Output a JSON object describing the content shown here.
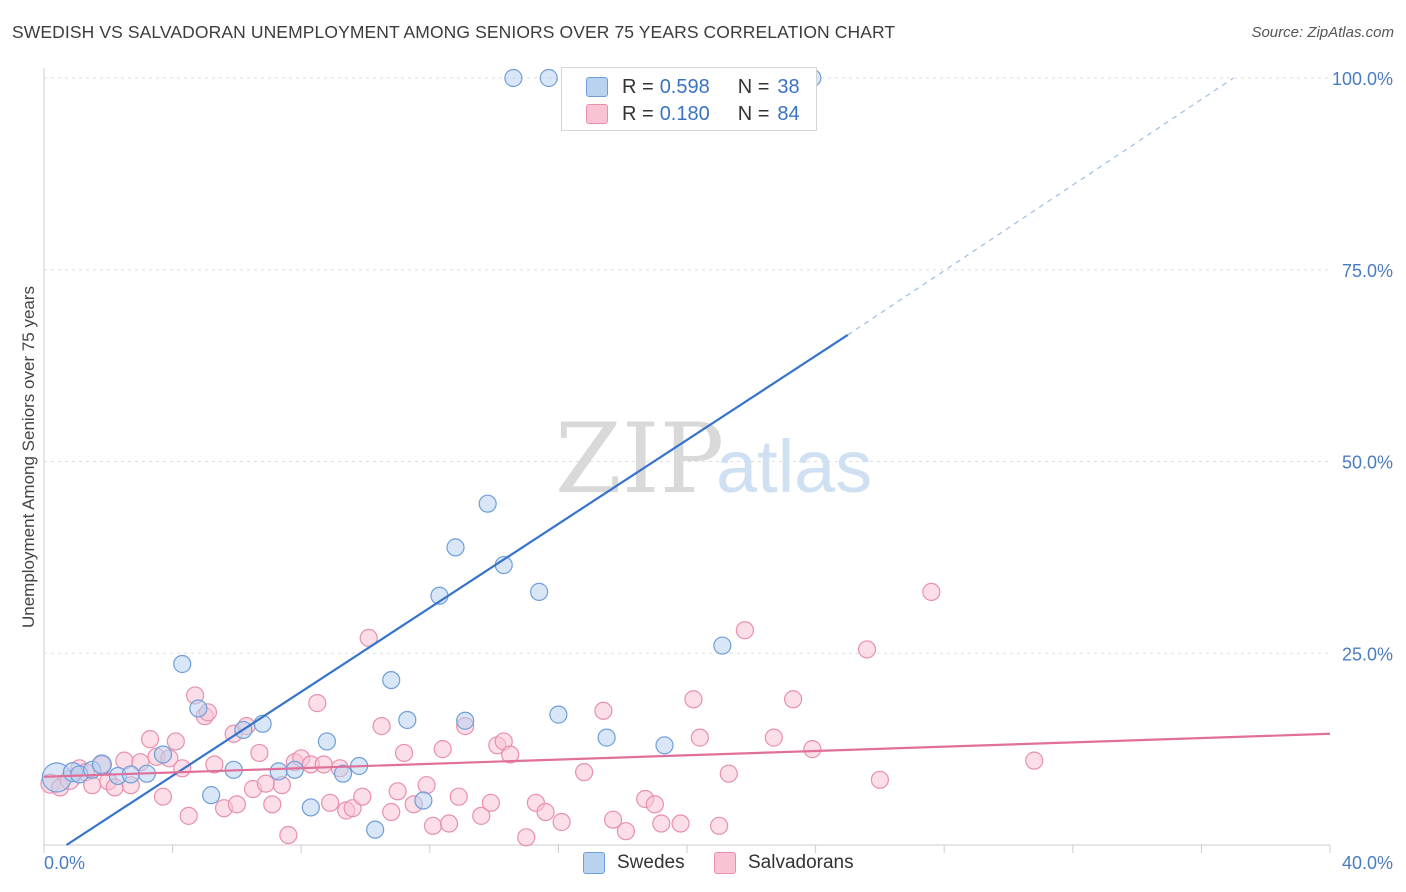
{
  "title": "SWEDISH VS SALVADORAN UNEMPLOYMENT AMONG SENIORS OVER 75 YEARS CORRELATION CHART",
  "source": "Source: ZipAtlas.com",
  "watermark": {
    "zip": "ZIP",
    "atlas": "atlas"
  },
  "colors": {
    "blue_fill": "#b9d2f0",
    "blue_stroke": "#6f9fd8",
    "blue_line": "#3673cc",
    "pink_fill": "#f8c3d3",
    "pink_stroke": "#e890ad",
    "pink_line": "#e0709a",
    "grid": "#dddddd",
    "tick_text": "#4a7cc0"
  },
  "legend": {
    "rows": [
      {
        "r_label": "R =",
        "r_value": "0.598",
        "n_label": "N =",
        "n_value": "38"
      },
      {
        "r_label": "R =",
        "r_value": "0.180",
        "n_label": "N =",
        "n_value": "84"
      }
    ]
  },
  "bottom_legend": [
    "Swedes",
    "Salvadorans"
  ],
  "chart_data": {
    "type": "scatter",
    "title": "SWEDISH VS SALVADORAN UNEMPLOYMENT AMONG SENIORS OVER 75 YEARS CORRELATION CHART",
    "xlabel": "",
    "ylabel": "Unemployment Among Seniors over 75 years",
    "xlim": [
      0,
      40
    ],
    "ylim": [
      0,
      103
    ],
    "x_tick_labels": [
      "0.0%",
      "40.0%"
    ],
    "y_ticks": [
      25,
      50,
      75,
      100
    ],
    "y_tick_labels": [
      "25.0%",
      "50.0%",
      "75.0%",
      "100.0%"
    ],
    "grid": true,
    "series": [
      {
        "name": "Swedes",
        "R": 0.598,
        "N": 38,
        "trend": {
          "x0": 0.7,
          "y0": 0,
          "x1": 25,
          "y1": 66.5,
          "dash_x1": 37,
          "dash_y1": 100
        },
        "points": [
          [
            0.4,
            8.8,
            26
          ],
          [
            0.9,
            9.5,
            16
          ],
          [
            1.1,
            9.2,
            14
          ],
          [
            1.5,
            9.8,
            14
          ],
          [
            1.8,
            10.5,
            16
          ],
          [
            2.3,
            9.0,
            14
          ],
          [
            2.7,
            9.2,
            14
          ],
          [
            3.2,
            9.3,
            14
          ],
          [
            3.7,
            11.8,
            14
          ],
          [
            4.3,
            23.6,
            14
          ],
          [
            4.8,
            17.8,
            14
          ],
          [
            5.2,
            6.5,
            14
          ],
          [
            5.9,
            9.8,
            14
          ],
          [
            6.2,
            15.0,
            14
          ],
          [
            6.8,
            15.8,
            14
          ],
          [
            7.3,
            9.6,
            14
          ],
          [
            7.8,
            9.8,
            14
          ],
          [
            8.3,
            4.9,
            14
          ],
          [
            8.8,
            13.5,
            14
          ],
          [
            9.3,
            9.3,
            14
          ],
          [
            9.8,
            10.3,
            14
          ],
          [
            10.3,
            2.0,
            14
          ],
          [
            10.8,
            21.5,
            14
          ],
          [
            11.3,
            16.3,
            14
          ],
          [
            11.8,
            5.8,
            14
          ],
          [
            12.3,
            32.5,
            14
          ],
          [
            12.8,
            38.8,
            14
          ],
          [
            13.1,
            16.2,
            14
          ],
          [
            13.8,
            44.5,
            14
          ],
          [
            14.3,
            36.5,
            14
          ],
          [
            14.6,
            100,
            14
          ],
          [
            15.4,
            33.0,
            14
          ],
          [
            15.7,
            100,
            14
          ],
          [
            16.0,
            17.0,
            14
          ],
          [
            17.5,
            14.0,
            14
          ],
          [
            19.3,
            13.0,
            14
          ],
          [
            21.1,
            26.0,
            14
          ],
          [
            23.9,
            100,
            14
          ]
        ]
      },
      {
        "name": "Salvadorans",
        "R": 0.18,
        "N": 84,
        "trend": {
          "x0": 0,
          "y0": 8.9,
          "x1": 40,
          "y1": 14.5
        },
        "points": [
          [
            0.2,
            8.0,
            16
          ],
          [
            0.5,
            7.5,
            14
          ],
          [
            0.8,
            8.5,
            16
          ],
          [
            1.1,
            10.0,
            14
          ],
          [
            1.3,
            9.5,
            14
          ],
          [
            1.5,
            7.8,
            14
          ],
          [
            1.8,
            10.5,
            14
          ],
          [
            2.0,
            8.3,
            14
          ],
          [
            2.2,
            7.5,
            14
          ],
          [
            2.5,
            11.0,
            14
          ],
          [
            2.7,
            7.8,
            14
          ],
          [
            3.0,
            10.8,
            14
          ],
          [
            3.3,
            13.8,
            14
          ],
          [
            3.5,
            11.5,
            14
          ],
          [
            3.7,
            6.3,
            14
          ],
          [
            3.9,
            11.3,
            14
          ],
          [
            4.1,
            13.5,
            14
          ],
          [
            4.3,
            10.0,
            14
          ],
          [
            4.5,
            3.8,
            14
          ],
          [
            4.7,
            19.5,
            14
          ],
          [
            5.0,
            16.8,
            14
          ],
          [
            5.1,
            17.3,
            14
          ],
          [
            5.3,
            10.5,
            14
          ],
          [
            5.6,
            4.8,
            14
          ],
          [
            5.9,
            14.5,
            14
          ],
          [
            6.0,
            5.3,
            14
          ],
          [
            6.3,
            15.5,
            14
          ],
          [
            6.5,
            7.3,
            14
          ],
          [
            6.7,
            12.0,
            14
          ],
          [
            6.9,
            8.0,
            14
          ],
          [
            7.1,
            5.3,
            14
          ],
          [
            7.4,
            7.8,
            14
          ],
          [
            7.6,
            1.3,
            14
          ],
          [
            7.8,
            10.8,
            14
          ],
          [
            8.0,
            11.3,
            14
          ],
          [
            8.3,
            10.5,
            14
          ],
          [
            8.5,
            18.5,
            14
          ],
          [
            8.7,
            10.5,
            14
          ],
          [
            8.9,
            5.5,
            14
          ],
          [
            9.2,
            10.0,
            14
          ],
          [
            9.4,
            4.5,
            14
          ],
          [
            9.6,
            4.8,
            14
          ],
          [
            9.9,
            6.3,
            14
          ],
          [
            10.1,
            27.0,
            14
          ],
          [
            10.5,
            15.5,
            14
          ],
          [
            10.8,
            4.3,
            14
          ],
          [
            11.0,
            7.0,
            14
          ],
          [
            11.2,
            12.0,
            14
          ],
          [
            11.5,
            5.3,
            14
          ],
          [
            11.9,
            7.8,
            14
          ],
          [
            12.1,
            2.5,
            14
          ],
          [
            12.4,
            12.5,
            14
          ],
          [
            12.6,
            2.8,
            14
          ],
          [
            12.9,
            6.3,
            14
          ],
          [
            13.1,
            15.5,
            14
          ],
          [
            13.6,
            3.8,
            14
          ],
          [
            13.9,
            5.5,
            14
          ],
          [
            14.1,
            13.0,
            14
          ],
          [
            14.3,
            13.5,
            14
          ],
          [
            14.5,
            11.8,
            14
          ],
          [
            15.0,
            1.0,
            14
          ],
          [
            15.3,
            5.5,
            14
          ],
          [
            15.6,
            4.3,
            14
          ],
          [
            16.1,
            3.0,
            14
          ],
          [
            16.8,
            9.5,
            14
          ],
          [
            17.4,
            17.5,
            14
          ],
          [
            18.1,
            1.8,
            14
          ],
          [
            18.7,
            6.0,
            14
          ],
          [
            19.0,
            5.3,
            14
          ],
          [
            19.2,
            2.8,
            14
          ],
          [
            20.2,
            19.0,
            14
          ],
          [
            20.4,
            14.0,
            14
          ],
          [
            21.0,
            2.5,
            14
          ],
          [
            21.8,
            28.0,
            14
          ],
          [
            22.7,
            14.0,
            14
          ],
          [
            23.3,
            19.0,
            14
          ],
          [
            23.9,
            12.5,
            14
          ],
          [
            25.6,
            25.5,
            14
          ],
          [
            26.0,
            8.5,
            14
          ],
          [
            27.6,
            33.0,
            14
          ],
          [
            30.8,
            11.0,
            14
          ],
          [
            19.8,
            2.8,
            14
          ],
          [
            21.3,
            9.3,
            14
          ],
          [
            17.7,
            3.3,
            14
          ]
        ]
      }
    ]
  }
}
